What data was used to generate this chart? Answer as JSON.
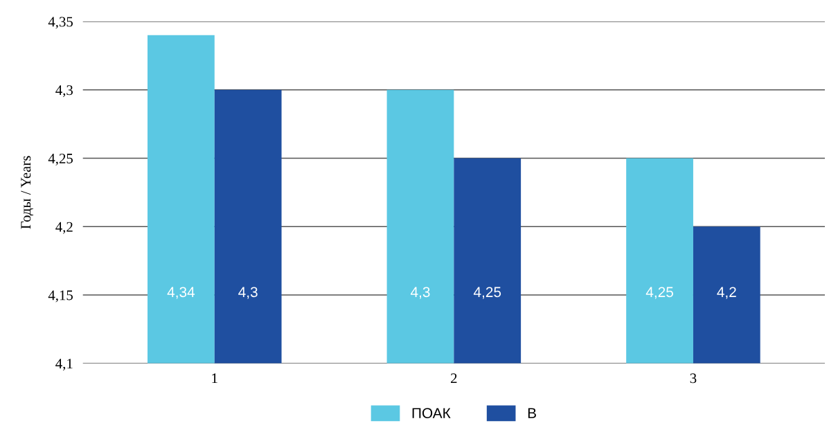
{
  "chart_data": {
    "type": "bar",
    "ylabel": "Годы / Years",
    "categories": [
      "1",
      "2",
      "3"
    ],
    "series": [
      {
        "name": "ПОАК",
        "color": "#5bc8e3",
        "values": [
          4.34,
          4.3,
          4.25
        ],
        "value_labels": [
          "4,34",
          "4,3",
          "4,25"
        ]
      },
      {
        "name": "В",
        "color": "#1f4fa0",
        "values": [
          4.3,
          4.25,
          4.2
        ],
        "value_labels": [
          "4,3",
          "4,25",
          "4,2"
        ]
      }
    ],
    "ylim": [
      4.1,
      4.35
    ],
    "yticks": [
      {
        "value": 4.1,
        "label": "4,1"
      },
      {
        "value": 4.15,
        "label": "4,15"
      },
      {
        "value": 4.2,
        "label": "4,2"
      },
      {
        "value": 4.25,
        "label": "4,25"
      },
      {
        "value": 4.3,
        "label": "4,3"
      },
      {
        "value": 4.35,
        "label": "4,35"
      }
    ],
    "grid": "y",
    "legend": "bottom"
  }
}
